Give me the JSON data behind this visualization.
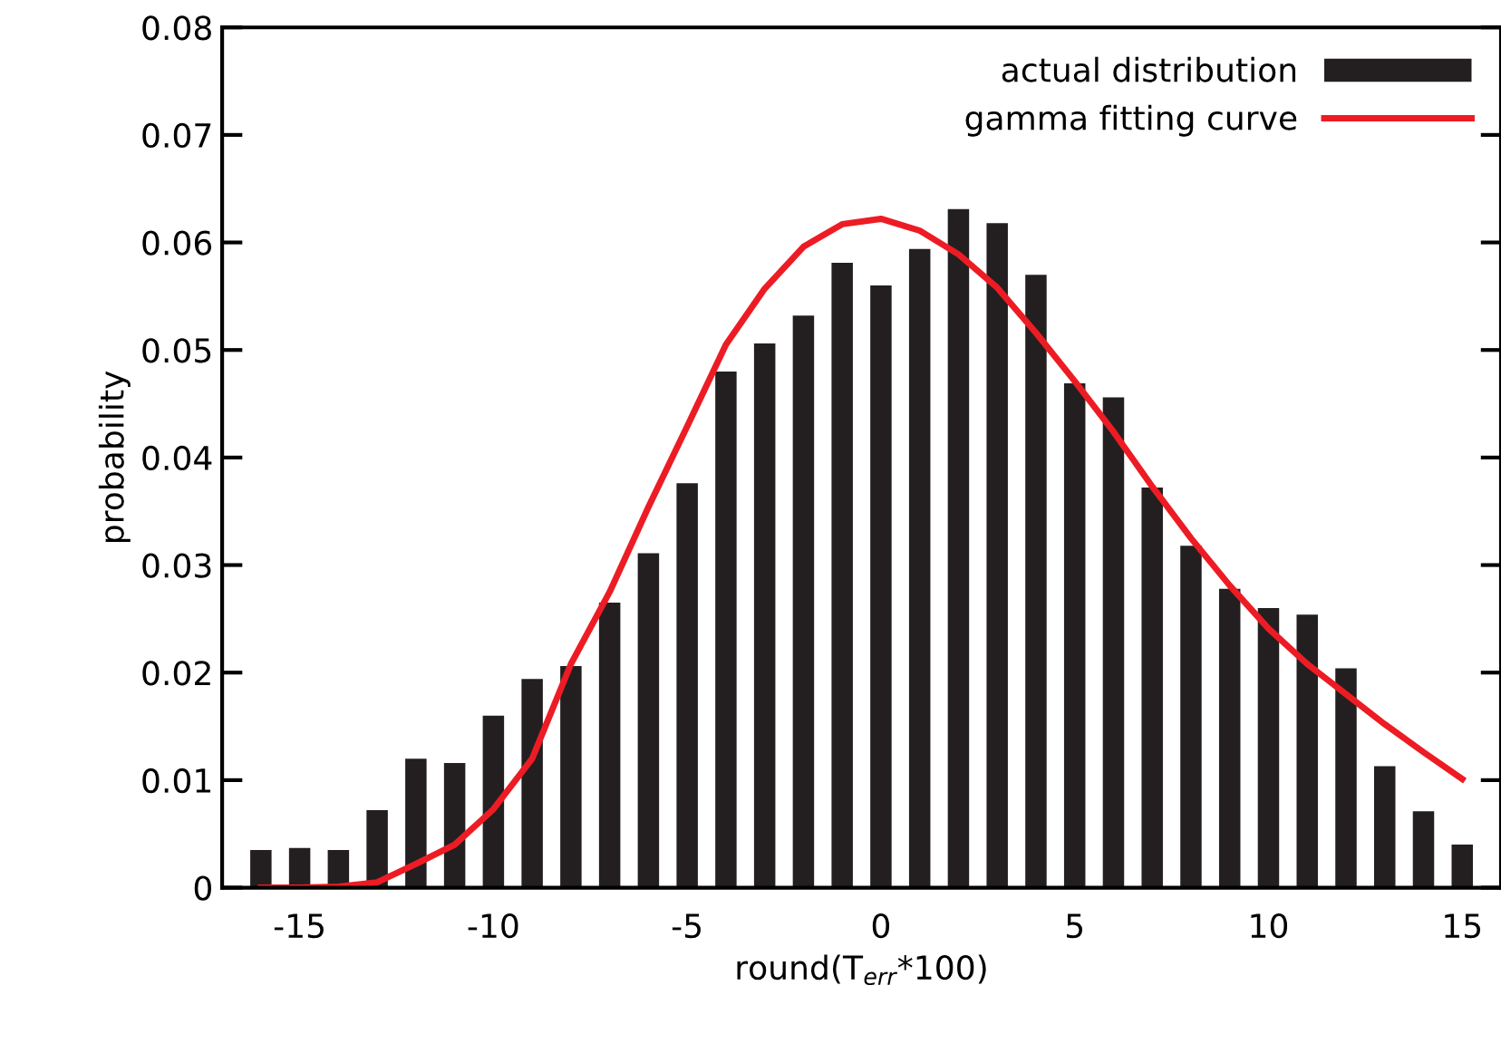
{
  "chart_data": {
    "type": "bar",
    "xlabel": "round(T$_{err}$*100)",
    "ylabel": "probability",
    "x": [
      -16,
      -15,
      -14,
      -13,
      -12,
      -11,
      -10,
      -9,
      -8,
      -7,
      -6,
      -5,
      -4,
      -3,
      -2,
      -1,
      0,
      1,
      2,
      3,
      4,
      5,
      6,
      7,
      8,
      9,
      10,
      11,
      12,
      13,
      14,
      15
    ],
    "series": [
      {
        "name": "actual distribution",
        "color": "#231f20",
        "values": [
          0.0035,
          0.0037,
          0.0035,
          0.0072,
          0.012,
          0.0116,
          0.016,
          0.0194,
          0.0206,
          0.0265,
          0.0311,
          0.0376,
          0.048,
          0.0506,
          0.0532,
          0.0581,
          0.056,
          0.0594,
          0.0631,
          0.0618,
          0.057,
          0.0469,
          0.0456,
          0.0372,
          0.0318,
          0.0278,
          0.026,
          0.0254,
          0.0204,
          0.0113,
          0.0071,
          0.004
        ]
      },
      {
        "name": "gamma fitting curve",
        "type": "line",
        "color": "#ed1c24",
        "values": [
          0.0,
          0.0,
          0.0001,
          0.0005,
          0.0022,
          0.004,
          0.0073,
          0.012,
          0.0208,
          0.0275,
          0.0354,
          0.0429,
          0.0505,
          0.0557,
          0.0596,
          0.0617,
          0.0622,
          0.0611,
          0.0589,
          0.0558,
          0.0516,
          0.0471,
          0.0424,
          0.0373,
          0.0325,
          0.0281,
          0.0241,
          0.0208,
          0.018,
          0.0152,
          0.0126,
          0.0101
        ]
      }
    ],
    "xlim": [
      -17,
      16
    ],
    "xticks": [
      -15,
      -10,
      -5,
      0,
      5,
      10,
      15
    ],
    "ylim": [
      0,
      0.08
    ],
    "yticks": [
      0,
      0.01,
      0.02,
      0.03,
      0.04,
      0.05,
      0.06,
      0.07,
      0.08
    ],
    "grid": false,
    "legend": "top right",
    "marker": "none",
    "line_style": "solid"
  }
}
